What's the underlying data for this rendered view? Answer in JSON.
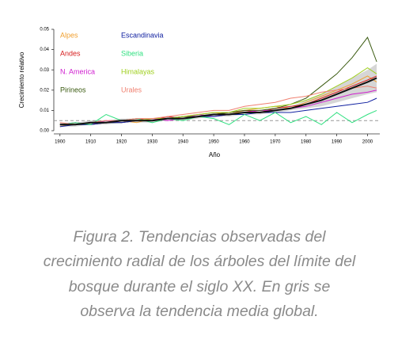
{
  "chart_data": {
    "type": "line",
    "xlabel": "Año",
    "ylabel": "Crecimiento relativo",
    "x": [
      1900,
      1905,
      1910,
      1915,
      1920,
      1925,
      1930,
      1935,
      1940,
      1945,
      1950,
      1955,
      1960,
      1965,
      1970,
      1975,
      1980,
      1985,
      1990,
      1995,
      2000,
      2003
    ],
    "xlim": [
      1898,
      2004
    ],
    "xticks": [
      1900,
      1910,
      1920,
      1930,
      1940,
      1950,
      1960,
      1970,
      1980,
      1990,
      2000
    ],
    "ylim": [
      0,
      0.05
    ],
    "yticks": [
      {
        "value": 0,
        "label": "0.00"
      },
      0.01,
      0.02,
      0.03,
      0.04,
      0.05
    ],
    "legend": "upper left",
    "reference_line": {
      "value": 0.005,
      "color": "#999999"
    },
    "band": {
      "color": "#cccccc",
      "lower": [
        0.002,
        0.002,
        0.003,
        0.003,
        0.004,
        0.004,
        0.004,
        0.005,
        0.005,
        0.006,
        0.007,
        0.007,
        0.008,
        0.008,
        0.009,
        0.01,
        0.011,
        0.012,
        0.014,
        0.016,
        0.018,
        0.019
      ],
      "upper": [
        0.004,
        0.004,
        0.005,
        0.005,
        0.006,
        0.006,
        0.006,
        0.007,
        0.007,
        0.008,
        0.009,
        0.009,
        0.01,
        0.01,
        0.011,
        0.012,
        0.015,
        0.018,
        0.022,
        0.026,
        0.03,
        0.033
      ]
    },
    "series": [
      {
        "name": "Alpes",
        "color": "#f0a030",
        "values": [
          0.002,
          0.004,
          0.003,
          0.004,
          0.005,
          0.004,
          0.006,
          0.006,
          0.007,
          0.008,
          0.009,
          0.008,
          0.01,
          0.011,
          0.012,
          0.011,
          0.014,
          0.017,
          0.02,
          0.023,
          0.027,
          0.024
        ]
      },
      {
        "name": "Andes",
        "color": "#d62020",
        "values": [
          0.003,
          0.003,
          0.004,
          0.004,
          0.005,
          0.006,
          0.005,
          0.007,
          0.006,
          0.007,
          0.008,
          0.009,
          0.01,
          0.009,
          0.011,
          0.012,
          0.013,
          0.016,
          0.019,
          0.022,
          0.025,
          0.027
        ]
      },
      {
        "name": "N. America",
        "color": "#d020d0",
        "values": [
          0.003,
          0.004,
          0.003,
          0.005,
          0.004,
          0.005,
          0.006,
          0.005,
          0.006,
          0.008,
          0.007,
          0.008,
          0.009,
          0.01,
          0.01,
          0.011,
          0.012,
          0.014,
          0.016,
          0.018,
          0.019,
          0.02
        ]
      },
      {
        "name": "Pirineos",
        "color": "#3a5a10",
        "values": [
          0.003,
          0.003,
          0.003,
          0.004,
          0.004,
          0.005,
          0.005,
          0.006,
          0.007,
          0.007,
          0.008,
          0.009,
          0.01,
          0.01,
          0.011,
          0.013,
          0.016,
          0.022,
          0.028,
          0.036,
          0.046,
          0.034
        ]
      },
      {
        "name": "Escandinavia",
        "color": "#1020a0",
        "values": [
          0.002,
          0.003,
          0.003,
          0.004,
          0.004,
          0.005,
          0.005,
          0.006,
          0.006,
          0.007,
          0.007,
          0.008,
          0.008,
          0.009,
          0.009,
          0.009,
          0.01,
          0.011,
          0.012,
          0.013,
          0.014,
          0.016
        ]
      },
      {
        "name": "Siberia",
        "color": "#30e080",
        "values": [
          0.003,
          0.004,
          0.003,
          0.008,
          0.005,
          0.006,
          0.004,
          0.006,
          0.005,
          0.007,
          0.006,
          0.003,
          0.008,
          0.005,
          0.009,
          0.004,
          0.007,
          0.003,
          0.009,
          0.004,
          0.008,
          0.01
        ]
      },
      {
        "name": "Himalayas",
        "color": "#a0d020",
        "values": [
          0.003,
          0.003,
          0.004,
          0.004,
          0.005,
          0.005,
          0.006,
          0.006,
          0.007,
          0.008,
          0.009,
          0.009,
          0.011,
          0.011,
          0.012,
          0.013,
          0.015,
          0.018,
          0.022,
          0.026,
          0.031,
          0.028
        ]
      },
      {
        "name": "Urales",
        "color": "#f08070",
        "values": [
          0.004,
          0.003,
          0.004,
          0.005,
          0.005,
          0.006,
          0.006,
          0.007,
          0.008,
          0.009,
          0.01,
          0.01,
          0.012,
          0.013,
          0.014,
          0.016,
          0.017,
          0.019,
          0.02,
          0.021,
          0.022,
          0.021
        ]
      }
    ],
    "mean": {
      "color": "#111111",
      "values": [
        0.003,
        0.003,
        0.004,
        0.004,
        0.005,
        0.005,
        0.005,
        0.006,
        0.006,
        0.007,
        0.008,
        0.008,
        0.009,
        0.009,
        0.01,
        0.011,
        0.013,
        0.015,
        0.018,
        0.021,
        0.024,
        0.026
      ]
    }
  },
  "caption": [
    "Figura 2. Tendencias observadas del",
    "crecimiento radial de los árboles del límite del",
    "bosque durante el siglo XX. En gris se",
    "observa la tendencia media global."
  ]
}
